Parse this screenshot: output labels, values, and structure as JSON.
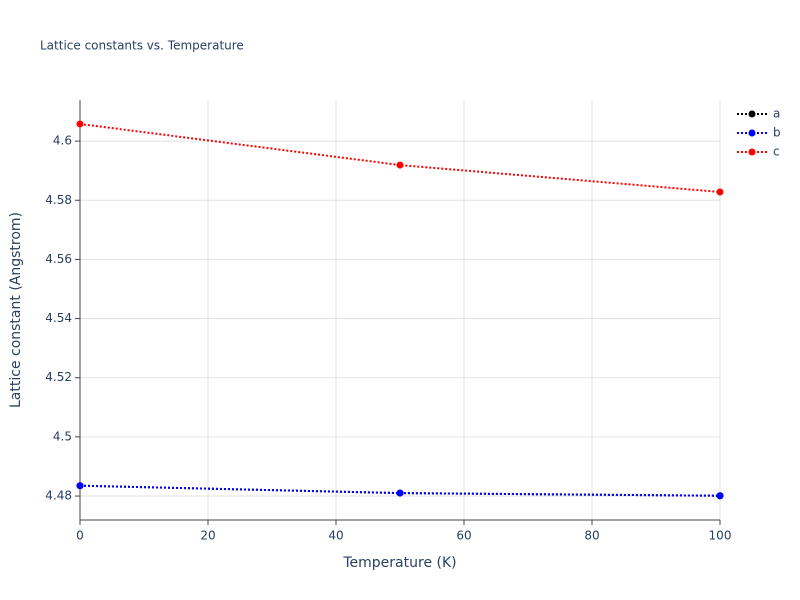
{
  "chart_data": {
    "type": "line",
    "title": "Lattice constants vs. Temperature",
    "x_label": "Temperature (K)",
    "y_label": "Lattice constant (Angstrom)",
    "x": [
      0,
      50,
      100
    ],
    "series": [
      {
        "name": "a",
        "color": "#000000",
        "values": [
          4.4835,
          4.481,
          4.4801
        ]
      },
      {
        "name": "b",
        "color": "#0000ff",
        "values": [
          4.4835,
          4.481,
          4.4801
        ]
      },
      {
        "name": "c",
        "color": "#ff0000",
        "values": [
          4.6058,
          4.5919,
          4.5828
        ]
      }
    ],
    "xlim": [
      0,
      100
    ],
    "xticks": [
      0,
      20,
      40,
      60,
      80,
      100
    ],
    "ylim": [
      4.4719,
      4.6139
    ],
    "yticks": [
      4.48,
      4.5,
      4.52,
      4.54,
      4.56,
      4.58,
      4.6
    ],
    "grid": true,
    "legend": "top-right"
  }
}
